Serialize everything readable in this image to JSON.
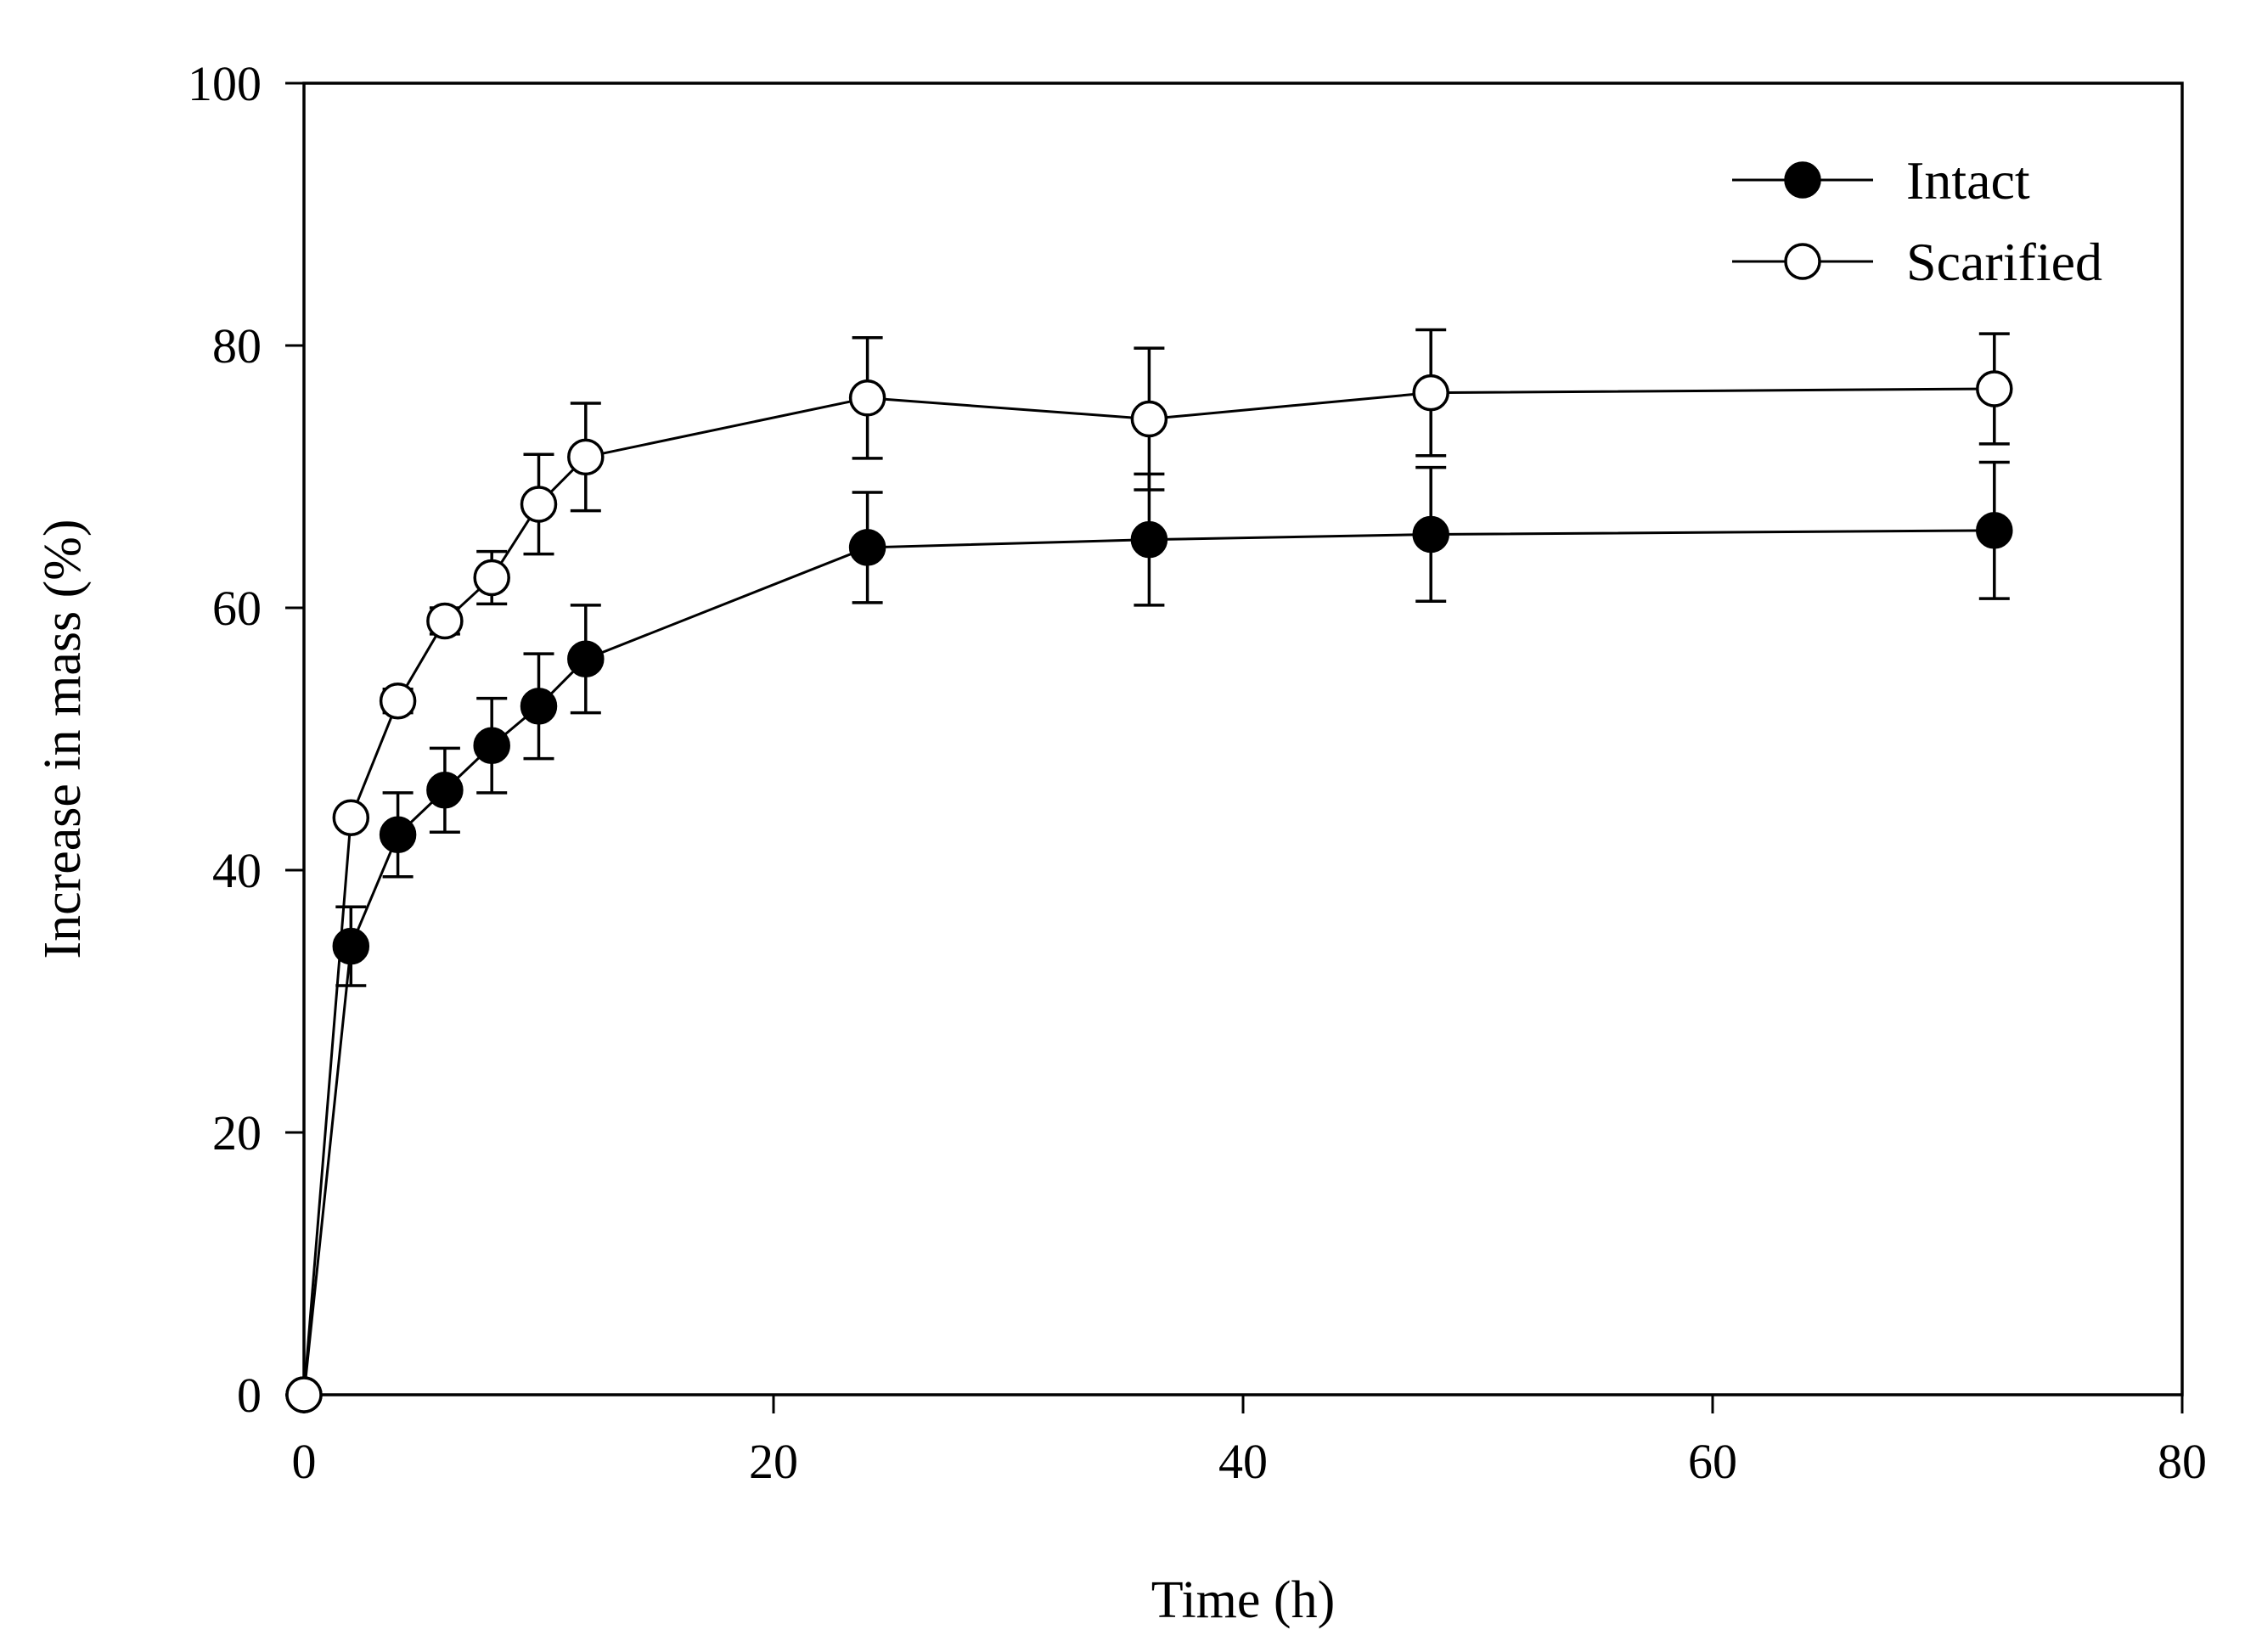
{
  "chart_data": {
    "type": "line",
    "title": "",
    "xlabel": "Time (h)",
    "ylabel": "Increase in mass (%)",
    "xlim": [
      0,
      80
    ],
    "ylim": [
      0,
      100
    ],
    "xticks": [
      0,
      20,
      40,
      60,
      80
    ],
    "yticks": [
      0,
      20,
      40,
      60,
      80,
      100
    ],
    "grid": false,
    "legend_position": "top-right",
    "series": [
      {
        "name": "Intact",
        "marker": "filled-circle",
        "color": "#000000",
        "points": [
          {
            "x": 0,
            "y": 0,
            "err": 0
          },
          {
            "x": 2,
            "y": 34.2,
            "err": 3.0
          },
          {
            "x": 4,
            "y": 42.7,
            "err": 3.2
          },
          {
            "x": 6,
            "y": 46.1,
            "err": 3.2
          },
          {
            "x": 8,
            "y": 49.5,
            "err": 3.6
          },
          {
            "x": 10,
            "y": 52.5,
            "err": 4.0
          },
          {
            "x": 12,
            "y": 56.1,
            "err": 4.1
          },
          {
            "x": 24,
            "y": 64.6,
            "err": 4.2
          },
          {
            "x": 36,
            "y": 65.2,
            "err": 5.0
          },
          {
            "x": 48,
            "y": 65.6,
            "err": 5.1
          },
          {
            "x": 72,
            "y": 65.9,
            "err": 5.2
          }
        ]
      },
      {
        "name": "Scarified",
        "marker": "open-circle",
        "color": "#000000",
        "points": [
          {
            "x": 0,
            "y": 0,
            "err": 0
          },
          {
            "x": 2,
            "y": 44.0,
            "err": 0.5
          },
          {
            "x": 4,
            "y": 52.9,
            "err": 0.9
          },
          {
            "x": 6,
            "y": 59.0,
            "err": 1.0
          },
          {
            "x": 8,
            "y": 62.3,
            "err": 2.0
          },
          {
            "x": 10,
            "y": 67.9,
            "err": 3.8
          },
          {
            "x": 12,
            "y": 71.5,
            "err": 4.1
          },
          {
            "x": 24,
            "y": 76.0,
            "err": 4.6
          },
          {
            "x": 36,
            "y": 74.4,
            "err": 5.4
          },
          {
            "x": 48,
            "y": 76.4,
            "err": 4.8
          },
          {
            "x": 72,
            "y": 76.7,
            "err": 4.2
          }
        ]
      }
    ]
  }
}
